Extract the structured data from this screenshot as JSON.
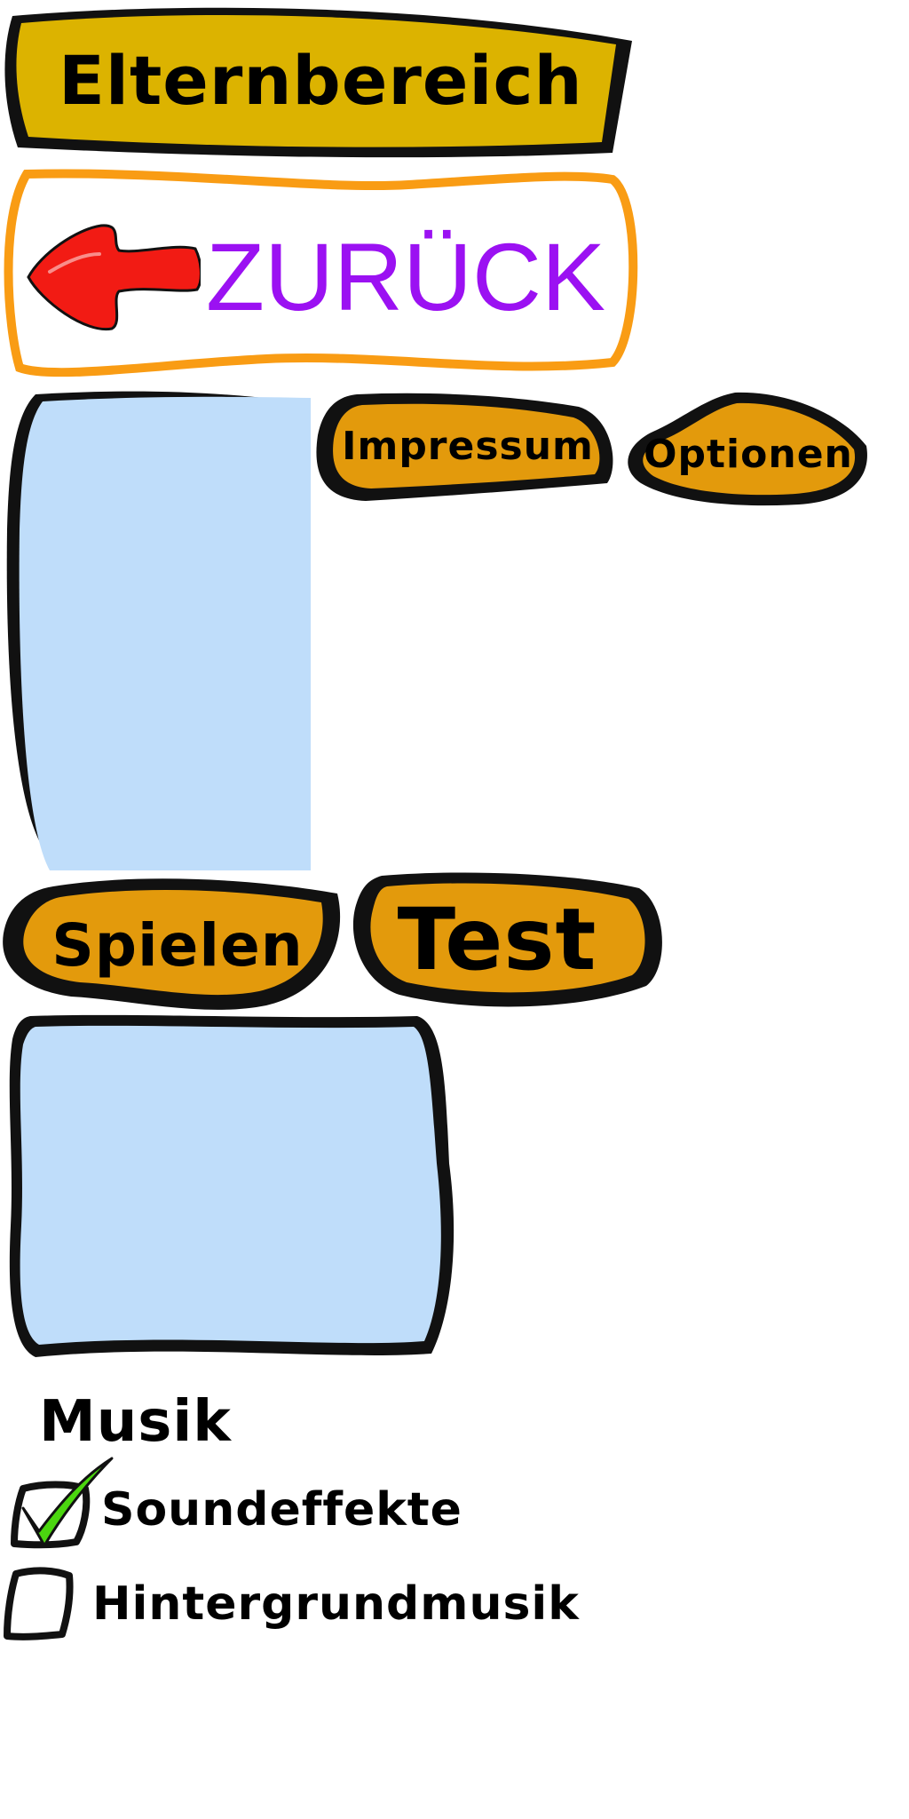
{
  "header": {
    "title": "Elternbereich"
  },
  "back_button": {
    "label": "ZURÜCK",
    "label_color": "#9b11f2",
    "icon": "red-arrow-left-icon"
  },
  "menu": {
    "impressum_label": "Impressum",
    "optionen_label": "Optionen",
    "spielen_label": "Spielen",
    "test_label": "Test"
  },
  "music": {
    "heading": "Musik",
    "options": [
      {
        "label": "Soundeffekte",
        "checked": true
      },
      {
        "label": "Hintergrundmusik",
        "checked": false
      }
    ]
  },
  "colors": {
    "header_fill": "#dcb300",
    "back_border": "#f99c14",
    "button_fill": "#e39a0c",
    "panel_fill": "#bfddfa",
    "arrow_fill": "#f21b14",
    "check_color": "#4bd60f"
  }
}
